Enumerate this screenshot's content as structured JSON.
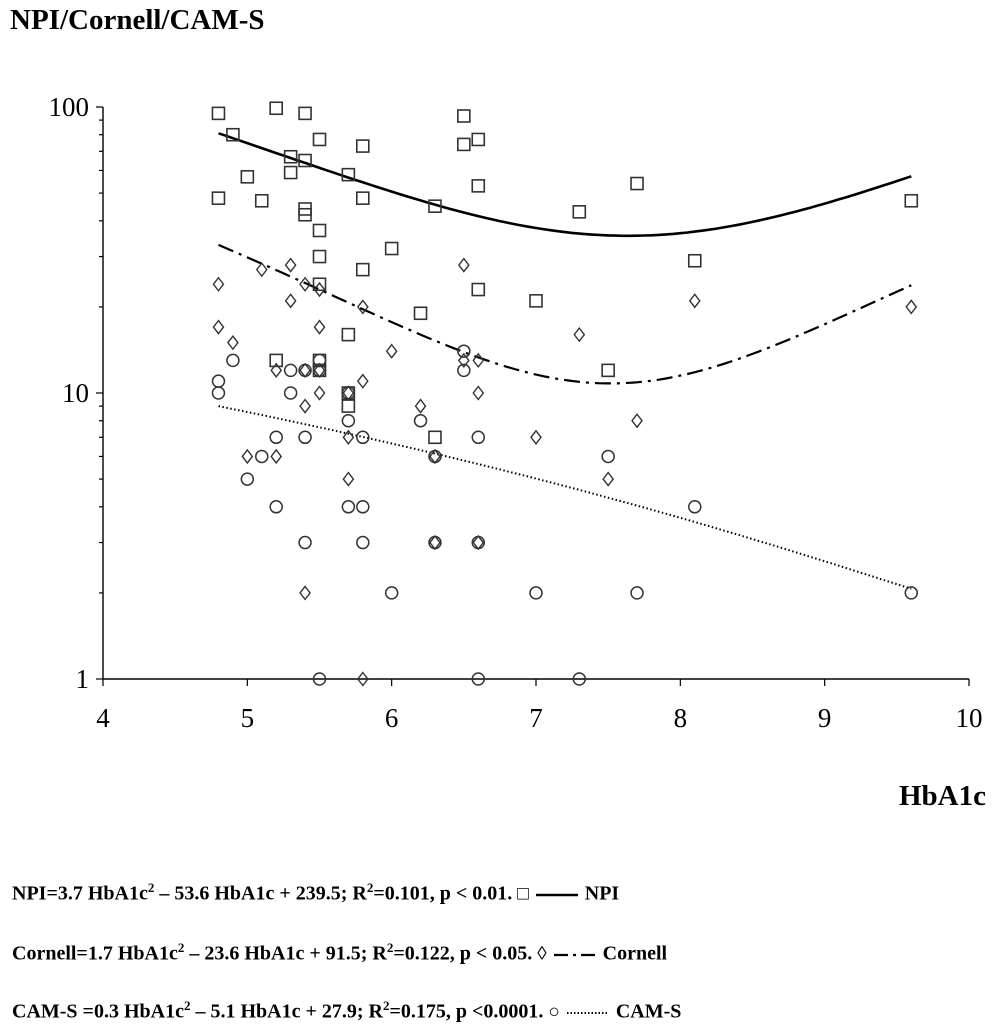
{
  "chart_data": {
    "type": "scatter",
    "title": "",
    "ylabel": "NPI/Cornell/CAM-S",
    "xlabel": "HbA1c",
    "xlim": [
      4,
      10
    ],
    "ylim": [
      1,
      100
    ],
    "yscale": "log",
    "grid": false,
    "x_ticks": [
      "4",
      "5",
      "6",
      "7",
      "8",
      "9",
      "10"
    ],
    "y_ticks": [
      "1",
      "10",
      "100"
    ],
    "series": [
      {
        "name": "NPI",
        "marker": "square",
        "points": [
          [
            4.8,
            95
          ],
          [
            4.8,
            48
          ],
          [
            4.9,
            80
          ],
          [
            5.0,
            57
          ],
          [
            5.1,
            47
          ],
          [
            5.2,
            99
          ],
          [
            5.2,
            13
          ],
          [
            5.3,
            67
          ],
          [
            5.3,
            59
          ],
          [
            5.4,
            95
          ],
          [
            5.4,
            65
          ],
          [
            5.4,
            44
          ],
          [
            5.4,
            42
          ],
          [
            5.5,
            77
          ],
          [
            5.5,
            37
          ],
          [
            5.5,
            30
          ],
          [
            5.5,
            24
          ],
          [
            5.5,
            13
          ],
          [
            5.5,
            12
          ],
          [
            5.7,
            58
          ],
          [
            5.7,
            16
          ],
          [
            5.7,
            10
          ],
          [
            5.7,
            9
          ],
          [
            5.8,
            73
          ],
          [
            5.8,
            48
          ],
          [
            5.8,
            27
          ],
          [
            6.0,
            32
          ],
          [
            6.2,
            19
          ],
          [
            6.3,
            45
          ],
          [
            6.3,
            7
          ],
          [
            6.5,
            93
          ],
          [
            6.5,
            74
          ],
          [
            6.6,
            77
          ],
          [
            6.6,
            53
          ],
          [
            6.6,
            23
          ],
          [
            7.0,
            21
          ],
          [
            7.3,
            43
          ],
          [
            7.5,
            12
          ],
          [
            7.7,
            54
          ],
          [
            8.1,
            29
          ],
          [
            9.6,
            47
          ]
        ]
      },
      {
        "name": "Cornell",
        "marker": "diamond",
        "points": [
          [
            4.8,
            24
          ],
          [
            4.8,
            17
          ],
          [
            4.9,
            15
          ],
          [
            5.0,
            6
          ],
          [
            5.1,
            27
          ],
          [
            5.2,
            12
          ],
          [
            5.2,
            6
          ],
          [
            5.3,
            28
          ],
          [
            5.3,
            21
          ],
          [
            5.4,
            24
          ],
          [
            5.4,
            12
          ],
          [
            5.4,
            9
          ],
          [
            5.4,
            2
          ],
          [
            5.5,
            23
          ],
          [
            5.5,
            17
          ],
          [
            5.5,
            12
          ],
          [
            5.5,
            10
          ],
          [
            5.7,
            10
          ],
          [
            5.7,
            7
          ],
          [
            5.7,
            5
          ],
          [
            5.8,
            20
          ],
          [
            5.8,
            11
          ],
          [
            5.8,
            1
          ],
          [
            6.0,
            14
          ],
          [
            6.2,
            9
          ],
          [
            6.3,
            6
          ],
          [
            6.3,
            3
          ],
          [
            6.5,
            28
          ],
          [
            6.5,
            13
          ],
          [
            6.6,
            13
          ],
          [
            6.6,
            10
          ],
          [
            6.6,
            3
          ],
          [
            7.0,
            7
          ],
          [
            7.3,
            16
          ],
          [
            7.5,
            5
          ],
          [
            7.7,
            8
          ],
          [
            8.1,
            21
          ],
          [
            9.6,
            20
          ]
        ]
      },
      {
        "name": "CAM-S",
        "marker": "circle",
        "points": [
          [
            4.8,
            11
          ],
          [
            4.8,
            10
          ],
          [
            4.9,
            13
          ],
          [
            5.0,
            5
          ],
          [
            5.1,
            6
          ],
          [
            5.2,
            7
          ],
          [
            5.2,
            4
          ],
          [
            5.3,
            12
          ],
          [
            5.3,
            10
          ],
          [
            5.4,
            12
          ],
          [
            5.4,
            7
          ],
          [
            5.4,
            3
          ],
          [
            5.5,
            13
          ],
          [
            5.5,
            12
          ],
          [
            5.5,
            1
          ],
          [
            5.7,
            10
          ],
          [
            5.7,
            8
          ],
          [
            5.7,
            4
          ],
          [
            5.8,
            7
          ],
          [
            5.8,
            4
          ],
          [
            5.8,
            3
          ],
          [
            6.0,
            2
          ],
          [
            6.2,
            8
          ],
          [
            6.3,
            6
          ],
          [
            6.3,
            3
          ],
          [
            6.5,
            14
          ],
          [
            6.5,
            12
          ],
          [
            6.6,
            7
          ],
          [
            6.6,
            3
          ],
          [
            6.6,
            1
          ],
          [
            7.0,
            2
          ],
          [
            7.3,
            1
          ],
          [
            7.5,
            6
          ],
          [
            7.7,
            2
          ],
          [
            8.1,
            4
          ],
          [
            9.6,
            2
          ]
        ]
      }
    ],
    "trendlines": [
      {
        "series": "NPI",
        "style": "solid",
        "a": 3.7,
        "b": -53.6,
        "c": 239.5,
        "xrange": [
          4.8,
          9.6
        ]
      },
      {
        "series": "Cornell",
        "style": "dash-dot",
        "a": 1.7,
        "b": -23.6,
        "c": 91.5,
        "xrange": [
          4.8,
          9.6
        ]
      },
      {
        "series": "CAM-S",
        "style": "dotted",
        "a": 0.3,
        "b": -5.1,
        "c": 27.9,
        "xrange": [
          4.8,
          9.6
        ]
      }
    ],
    "equations": [
      {
        "pre": "NPI=3.7 HbA1c",
        "sup": "2",
        "mid": " – 53.6 HbA1c + 239.5; R",
        "sup2": "2",
        "post": "=0.101, p < 0.01.",
        "symbol": "□",
        "line_label": "NPI"
      },
      {
        "pre": "Cornell=1.7 HbA1c",
        "sup": "2",
        "mid": " – 23.6 HbA1c + 91.5; R",
        "sup2": "2",
        "post": "=0.122, p < 0.05.",
        "symbol": "◊",
        "line_label": "Cornell"
      },
      {
        "pre": "CAM-S =0.3 HbA1c",
        "sup": "2",
        "mid": " – 5.1 HbA1c + 27.9; R",
        "sup2": "2",
        "post": "=0.175, p <0.0001.",
        "symbol": "○",
        "line_label": "CAM-S"
      }
    ]
  }
}
